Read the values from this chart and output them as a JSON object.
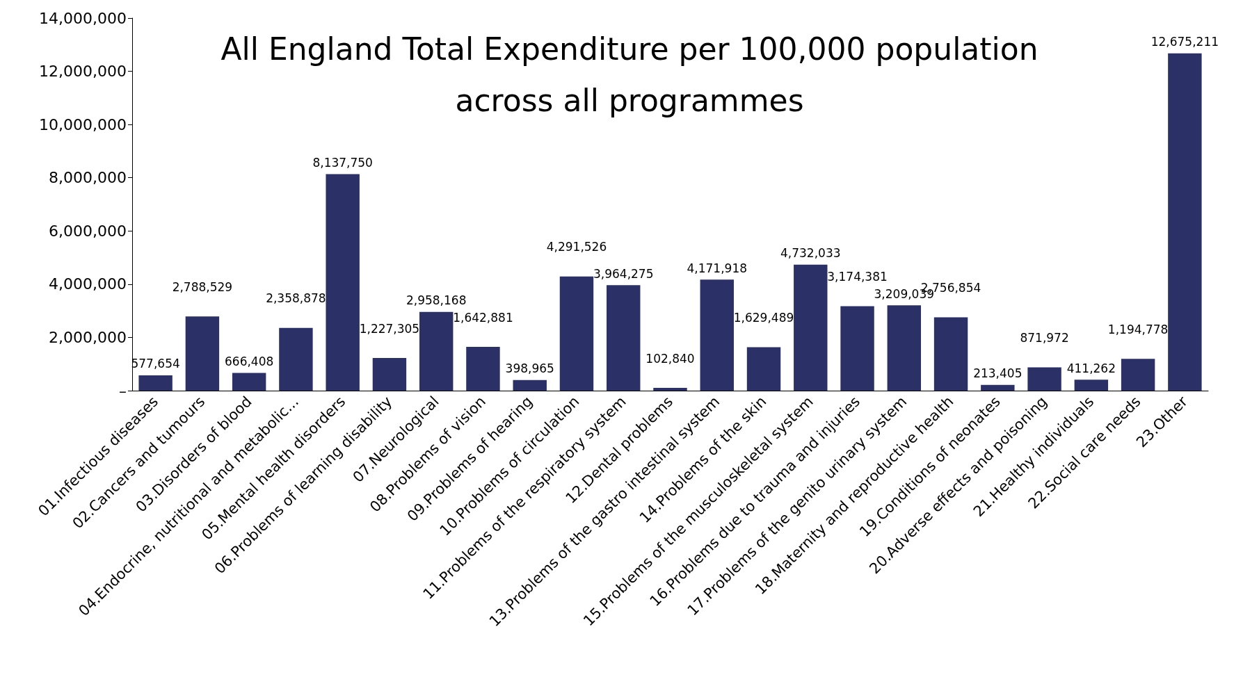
{
  "chart_data": {
    "type": "bar",
    "title": "All England Total Expenditure per 100,000 population\nacross all programmes",
    "categories": [
      "01.Infectious diseases",
      "02.Cancers and tumours",
      "03.Disorders of blood",
      "04.Endocrine, nutritional and metabolic...",
      "05.Mental health disorders",
      "06.Problems of learning disability",
      "07.Neurological",
      "08.Problems of vision",
      "09.Problems of hearing",
      "10.Problems of circulation",
      "11.Problems of the respiratory system",
      "12.Dental problems",
      "13.Problems of the gastro intestinal system",
      "14.Problems of the skin",
      "15.Problems of the musculoskeletal system",
      "16.Problems due to trauma and injuries",
      "17.Problems of the genito urinary system",
      "18.Maternity and reproductive health",
      "19.Conditions of neonates",
      "20.Adverse effects and poisoning",
      "21.Healthy individuals",
      "22.Social care needs",
      "23.Other"
    ],
    "values": [
      577654,
      2788529,
      666408,
      2358878,
      8137750,
      1227305,
      2958168,
      1642881,
      398965,
      4291526,
      3964275,
      102840,
      4171918,
      1629489,
      4732033,
      3174381,
      3209039,
      2756854,
      213405,
      871972,
      411262,
      1194778,
      12675211
    ],
    "value_labels": [
      "577,654",
      "2,788,529",
      "666,408",
      "2,358,878",
      "8,137,750",
      "1,227,305",
      "2,958,168",
      "1,642,881",
      "398,965",
      "4,291,526",
      "3,964,275",
      "102,840",
      "4,171,918",
      "1,629,489",
      "4,732,033",
      "3,174,381",
      "3,209,039",
      "2,756,854",
      "213,405",
      "871,972",
      "411,262",
      "1,194,778",
      "12,675,211"
    ],
    "color": "#2b3066",
    "grid": false,
    "ylim": [
      0,
      14000000
    ],
    "yticks": [
      {
        "value": 0,
        "label": "–"
      },
      {
        "value": 2000000,
        "label": "2,000,000"
      },
      {
        "value": 4000000,
        "label": "4,000,000"
      },
      {
        "value": 6000000,
        "label": "6,000,000"
      },
      {
        "value": 8000000,
        "label": "8,000,000"
      },
      {
        "value": 10000000,
        "label": "10,000,000"
      },
      {
        "value": 12000000,
        "label": "12,000,000"
      },
      {
        "value": 14000000,
        "label": "14,000,000"
      }
    ]
  }
}
